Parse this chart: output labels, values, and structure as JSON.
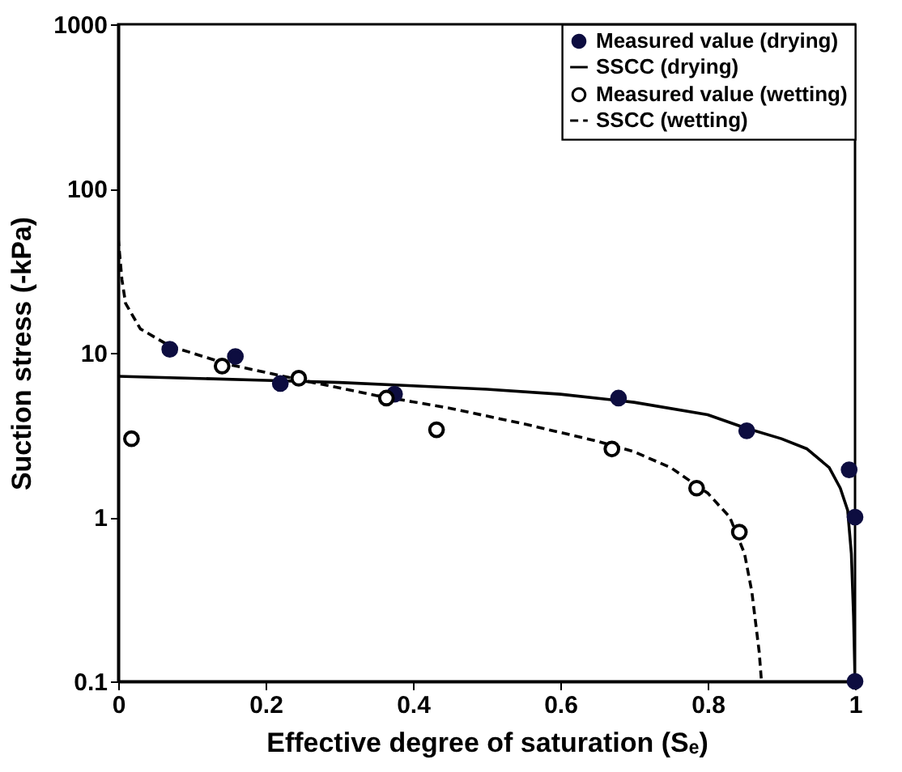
{
  "chart_data": {
    "type": "scatter",
    "xlabel": "Effective degree of saturation (Sₑ)",
    "ylabel": "Suction stress (-kPa)",
    "xlim": [
      0,
      1
    ],
    "xticks": [
      0,
      0.2,
      0.4,
      0.6,
      0.8,
      1
    ],
    "ylim": [
      0.1,
      1000
    ],
    "yticks": [
      0.1,
      1,
      10,
      100,
      1000
    ],
    "log": "y",
    "grid": false,
    "legend": "top right",
    "series": [
      {
        "name": "Measured value (drying)",
        "type": "scatter",
        "marker": "circle",
        "color": "#0d0d40",
        "x": [
          0.07,
          0.159,
          0.22,
          0.375,
          0.679,
          0.853,
          0.992,
          1.0,
          1.0
        ],
        "values": [
          10.5,
          9.5,
          6.5,
          5.6,
          5.3,
          3.35,
          1.94,
          1.0,
          0.1
        ]
      },
      {
        "name": "SSCC (drying)",
        "type": "line",
        "line_style": "solid",
        "color": "#000000",
        "x": [
          0,
          0.1,
          0.2,
          0.3,
          0.4,
          0.5,
          0.6,
          0.7,
          0.8,
          0.85,
          0.9,
          0.935,
          0.965,
          0.98,
          0.99,
          0.995,
          0.998,
          1.0
        ],
        "values": [
          7.2,
          7.0,
          6.8,
          6.6,
          6.3,
          6.0,
          5.6,
          5.0,
          4.2,
          3.5,
          3.0,
          2.6,
          2.0,
          1.5,
          1.1,
          0.6,
          0.25,
          0.1
        ]
      },
      {
        "name": "Measured value (wetting)",
        "type": "scatter",
        "marker": "circle",
        "color": "#000000",
        "x": [
          0.018,
          0.141,
          0.245,
          0.364,
          0.432,
          0.67,
          0.785,
          0.843
        ],
        "values": [
          3.0,
          8.3,
          7.0,
          5.3,
          3.4,
          2.6,
          1.5,
          0.81
        ]
      },
      {
        "name": "SSCC (wetting)",
        "type": "line",
        "line_style": "dashed",
        "color": "#000000",
        "x": [
          0,
          0.005,
          0.01,
          0.03,
          0.07,
          0.15,
          0.25,
          0.35,
          0.45,
          0.55,
          0.65,
          0.7,
          0.75,
          0.8,
          0.83,
          0.85,
          0.86,
          0.87,
          0.873
        ],
        "values": [
          50,
          28,
          20,
          14,
          11,
          8.5,
          6.8,
          5.5,
          4.6,
          3.7,
          2.9,
          2.5,
          2.0,
          1.4,
          1.0,
          0.6,
          0.35,
          0.15,
          0.1
        ]
      }
    ]
  }
}
